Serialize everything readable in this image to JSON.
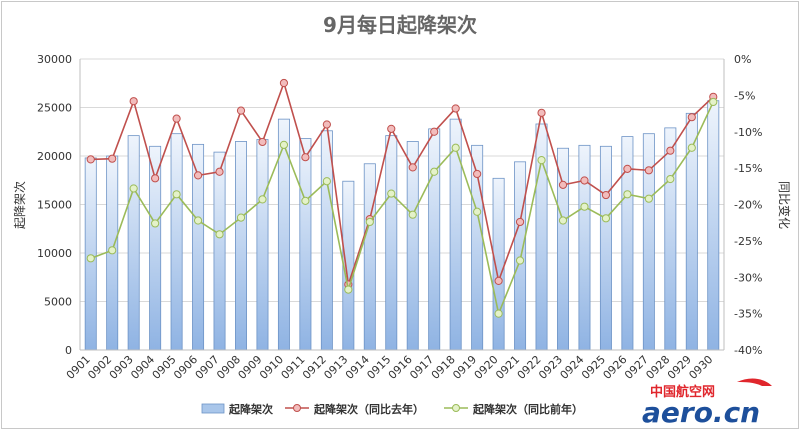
{
  "chart_data": {
    "type": "bar",
    "title": "9月每日起降架次",
    "categories": [
      "0901",
      "0902",
      "0903",
      "0904",
      "0905",
      "0906",
      "0907",
      "0908",
      "0909",
      "0910",
      "0911",
      "0912",
      "0913",
      "0914",
      "0915",
      "0916",
      "0917",
      "0918",
      "0919",
      "0920",
      "0921",
      "0922",
      "0923",
      "0924",
      "0925",
      "0926",
      "0927",
      "0928",
      "0929",
      "0930"
    ],
    "ylabel": "起降架次",
    "y2label": "同比变化",
    "ylim": [
      0,
      30000
    ],
    "yticks": [
      "0",
      "5000",
      "10000",
      "15000",
      "20000",
      "25000",
      "30000"
    ],
    "y2lim": [
      -40,
      0
    ],
    "y2ticks": [
      "0%",
      "-5%",
      "-10%",
      "-15%",
      "-20%",
      "-25%",
      "-30%",
      "-35%",
      "-40%"
    ],
    "grid": true,
    "legend_position": "bottom",
    "series": [
      {
        "name": "起降架次",
        "type": "bar",
        "axis": "left",
        "color": "#a9c6ea",
        "values": [
          19800,
          20000,
          22100,
          21000,
          22300,
          21200,
          20400,
          21500,
          21700,
          23800,
          21800,
          22600,
          17400,
          19200,
          22100,
          21500,
          22800,
          23800,
          21100,
          17700,
          19400,
          23300,
          20800,
          21100,
          21000,
          22000,
          22300,
          22900,
          24400,
          25700
        ]
      },
      {
        "name": "起降架次（同比去年）",
        "type": "line",
        "axis": "right",
        "color": "#c0504d",
        "values": [
          -13.8,
          -13.7,
          -5.8,
          -16.4,
          -8.2,
          -16.0,
          -15.5,
          -7.1,
          -11.4,
          -3.3,
          -13.5,
          -9.0,
          -31.0,
          -22.0,
          -9.6,
          -14.9,
          -10.0,
          -6.8,
          -15.8,
          -30.5,
          -22.4,
          -7.4,
          -17.3,
          -16.7,
          -18.7,
          -15.1,
          -15.3,
          -12.6,
          -8.0,
          -5.2
        ]
      },
      {
        "name": "起降架次（同比前年）",
        "type": "line",
        "axis": "right",
        "color": "#9bbb59",
        "values": [
          -27.4,
          -26.3,
          -17.8,
          -22.6,
          -18.6,
          -22.2,
          -24.1,
          -21.8,
          -19.3,
          -11.8,
          -19.5,
          -16.8,
          -31.7,
          -22.4,
          -18.5,
          -21.4,
          -15.5,
          -12.2,
          -21.0,
          -35.0,
          -27.7,
          -13.9,
          -22.2,
          -20.3,
          -21.9,
          -18.6,
          -19.2,
          -16.5,
          -12.2,
          -5.9
        ]
      }
    ]
  },
  "logo": {
    "cn": "中国航空网",
    "en": "aero.cn"
  }
}
